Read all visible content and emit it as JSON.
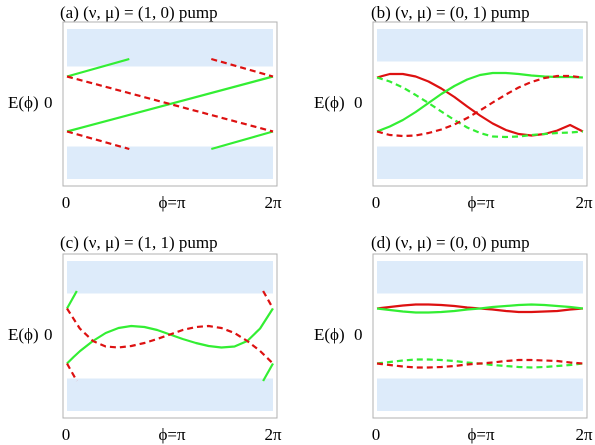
{
  "colors": {
    "band": "#ddebfa",
    "green": "#33ee33",
    "red": "#dd1111",
    "frame": "#b0b0b0"
  },
  "chart_data": [
    {
      "id": "a",
      "type": "line",
      "title": "(a) (ν, μ) = (1, 0) pump",
      "ylabel": "E(ϕ)",
      "yticks": [
        "0"
      ],
      "xticks": [
        "0",
        "ϕ=π",
        "2π"
      ],
      "xlim": [
        0,
        6.283
      ],
      "ylim": [
        -1.6,
        1.6
      ],
      "bands": [
        [
          0.75,
          1.5
        ],
        [
          -1.5,
          -0.85
        ]
      ],
      "series": [
        {
          "color": "green",
          "dash": false,
          "x": [
            0,
            6.283
          ],
          "y": [
            -0.55,
            0.55
          ]
        },
        {
          "color": "green",
          "dash": false,
          "x": [
            0,
            1.9
          ],
          "y": [
            0.55,
            0.9
          ]
        },
        {
          "color": "green",
          "dash": false,
          "x": [
            4.4,
            6.283
          ],
          "y": [
            -0.9,
            -0.55
          ]
        },
        {
          "color": "red",
          "dash": true,
          "x": [
            0,
            6.283
          ],
          "y": [
            0.55,
            -0.55
          ]
        },
        {
          "color": "red",
          "dash": true,
          "x": [
            0,
            1.9
          ],
          "y": [
            -0.55,
            -0.9
          ]
        },
        {
          "color": "red",
          "dash": true,
          "x": [
            4.4,
            6.283
          ],
          "y": [
            0.9,
            0.55
          ]
        }
      ]
    },
    {
      "id": "b",
      "type": "line",
      "title": "(b) (ν, μ) = (0, 1) pump",
      "ylabel": "E(ϕ)",
      "yticks": [
        "0"
      ],
      "xticks": [
        "0",
        "ϕ=π",
        "2π"
      ],
      "xlim": [
        0,
        6.283
      ],
      "ylim": [
        -1.6,
        1.6
      ],
      "bands": [
        [
          0.85,
          1.5
        ],
        [
          -1.5,
          -0.85
        ]
      ],
      "series": [
        {
          "color": "red",
          "dash": false,
          "x": [
            0,
            0.39,
            0.79,
            1.18,
            1.57,
            1.96,
            2.36,
            2.75,
            3.14,
            3.53,
            3.93,
            4.32,
            4.71,
            5.11,
            5.5,
            5.89,
            6.28
          ],
          "y": [
            0.53,
            0.6,
            0.6,
            0.55,
            0.45,
            0.31,
            0.14,
            -0.05,
            -0.23,
            -0.39,
            -0.52,
            -0.6,
            -0.63,
            -0.6,
            -0.53,
            -0.42,
            -0.55
          ]
        },
        {
          "color": "green",
          "dash": false,
          "x": [
            0,
            0.39,
            0.79,
            1.18,
            1.57,
            1.96,
            2.36,
            2.75,
            3.14,
            3.53,
            3.93,
            4.32,
            4.71,
            5.11,
            5.5,
            5.89,
            6.28
          ],
          "y": [
            -0.55,
            -0.45,
            -0.32,
            -0.16,
            0.02,
            0.2,
            0.36,
            0.49,
            0.58,
            0.62,
            0.62,
            0.6,
            0.57,
            0.55,
            0.54,
            0.54,
            0.53
          ]
        },
        {
          "color": "green",
          "dash": true,
          "x": [
            0,
            0.39,
            0.79,
            1.18,
            1.57,
            1.96,
            2.36,
            2.75,
            3.14,
            3.53,
            3.93,
            4.32,
            4.71,
            5.11,
            5.5,
            5.89,
            6.28
          ],
          "y": [
            0.53,
            0.45,
            0.33,
            0.18,
            0.02,
            -0.15,
            -0.32,
            -0.47,
            -0.58,
            -0.65,
            -0.66,
            -0.65,
            -0.62,
            -0.6,
            -0.58,
            -0.57,
            -0.55
          ]
        },
        {
          "color": "red",
          "dash": true,
          "x": [
            0,
            0.39,
            0.79,
            1.18,
            1.57,
            1.96,
            2.36,
            2.75,
            3.14,
            3.53,
            3.93,
            4.32,
            4.71,
            5.11,
            5.5,
            5.89,
            6.28
          ],
          "y": [
            -0.55,
            -0.62,
            -0.64,
            -0.63,
            -0.58,
            -0.51,
            -0.41,
            -0.28,
            -0.13,
            0.03,
            0.19,
            0.33,
            0.44,
            0.52,
            0.56,
            0.56,
            0.53
          ]
        }
      ]
    },
    {
      "id": "c",
      "type": "line",
      "title": "(c) (ν, μ) = (1, 1) pump",
      "ylabel": "E(ϕ)",
      "yticks": [
        "0"
      ],
      "xticks": [
        "0",
        "ϕ=π",
        "2π"
      ],
      "xlim": [
        0,
        6.283
      ],
      "ylim": [
        -1.6,
        1.6
      ],
      "bands": [
        [
          0.85,
          1.5
        ],
        [
          -1.5,
          -0.85
        ]
      ],
      "series": [
        {
          "color": "green",
          "dash": false,
          "x": [
            0,
            0.2,
            0.4,
            0.79,
            1.18,
            1.57,
            1.96,
            2.36,
            2.75,
            3.14,
            3.53,
            3.93,
            4.32,
            4.71,
            5.11,
            5.5,
            5.89,
            6.28
          ],
          "y": [
            -0.55,
            -0.42,
            -0.3,
            -0.1,
            0.06,
            0.16,
            0.2,
            0.18,
            0.12,
            0.03,
            -0.06,
            -0.14,
            -0.2,
            -0.23,
            -0.21,
            -0.1,
            0.15,
            0.55
          ]
        },
        {
          "color": "green",
          "dash": false,
          "x": [
            0,
            0.3
          ],
          "y": [
            0.55,
            0.9
          ]
        },
        {
          "color": "green",
          "dash": false,
          "x": [
            5.98,
            6.283
          ],
          "y": [
            -0.9,
            -0.55
          ]
        },
        {
          "color": "red",
          "dash": true,
          "x": [
            0,
            0.39,
            0.79,
            1.18,
            1.57,
            1.96,
            2.36,
            2.75,
            3.14,
            3.53,
            3.93,
            4.32,
            4.71,
            5.11,
            5.5,
            5.89,
            6.08,
            6.28
          ],
          "y": [
            0.55,
            0.15,
            -0.1,
            -0.21,
            -0.23,
            -0.2,
            -0.14,
            -0.06,
            0.03,
            0.12,
            0.18,
            0.2,
            0.16,
            0.06,
            -0.1,
            -0.3,
            -0.42,
            -0.55
          ]
        },
        {
          "color": "red",
          "dash": true,
          "x": [
            0,
            0.3
          ],
          "y": [
            -0.55,
            -0.9
          ]
        },
        {
          "color": "red",
          "dash": true,
          "x": [
            5.98,
            6.283
          ],
          "y": [
            0.9,
            0.55
          ]
        }
      ]
    },
    {
      "id": "d",
      "type": "line",
      "title": "(d) (ν, μ) = (0, 0) pump",
      "ylabel": "E(ϕ)",
      "yticks": [
        "0"
      ],
      "xticks": [
        "0",
        "ϕ=π",
        "2π"
      ],
      "xlim": [
        0,
        6.283
      ],
      "ylim": [
        -1.6,
        1.6
      ],
      "bands": [
        [
          0.85,
          1.5
        ],
        [
          -1.5,
          -0.85
        ]
      ],
      "series": [
        {
          "color": "red",
          "dash": false,
          "x": [
            0,
            0.39,
            0.79,
            1.18,
            1.57,
            1.96,
            2.36,
            2.75,
            3.14,
            3.53,
            3.93,
            4.32,
            4.71,
            5.11,
            5.5,
            5.89,
            6.28
          ],
          "y": [
            0.55,
            0.58,
            0.61,
            0.63,
            0.63,
            0.62,
            0.6,
            0.57,
            0.55,
            0.53,
            0.5,
            0.48,
            0.48,
            0.49,
            0.5,
            0.53,
            0.55
          ]
        },
        {
          "color": "green",
          "dash": false,
          "x": [
            0,
            0.39,
            0.79,
            1.18,
            1.57,
            1.96,
            2.36,
            2.75,
            3.14,
            3.53,
            3.93,
            4.32,
            4.71,
            5.11,
            5.5,
            5.89,
            6.28
          ],
          "y": [
            0.55,
            0.52,
            0.49,
            0.47,
            0.47,
            0.48,
            0.5,
            0.53,
            0.55,
            0.58,
            0.6,
            0.62,
            0.63,
            0.62,
            0.6,
            0.58,
            0.55
          ]
        },
        {
          "color": "green",
          "dash": true,
          "x": [
            0,
            0.39,
            0.79,
            1.18,
            1.57,
            1.96,
            2.36,
            2.75,
            3.14,
            3.53,
            3.93,
            4.32,
            4.71,
            5.11,
            5.5,
            5.89,
            6.28
          ],
          "y": [
            -0.55,
            -0.52,
            -0.49,
            -0.47,
            -0.47,
            -0.48,
            -0.5,
            -0.53,
            -0.55,
            -0.58,
            -0.6,
            -0.62,
            -0.63,
            -0.62,
            -0.6,
            -0.58,
            -0.55
          ]
        },
        {
          "color": "red",
          "dash": true,
          "x": [
            0,
            0.39,
            0.79,
            1.18,
            1.57,
            1.96,
            2.36,
            2.75,
            3.14,
            3.53,
            3.93,
            4.32,
            4.71,
            5.11,
            5.5,
            5.89,
            6.28
          ],
          "y": [
            -0.55,
            -0.58,
            -0.61,
            -0.63,
            -0.63,
            -0.62,
            -0.6,
            -0.57,
            -0.55,
            -0.53,
            -0.5,
            -0.48,
            -0.48,
            -0.49,
            -0.5,
            -0.53,
            -0.55
          ]
        }
      ]
    }
  ]
}
